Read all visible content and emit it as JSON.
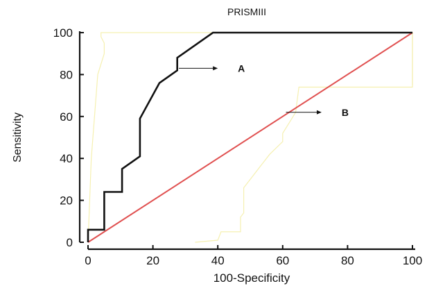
{
  "chart_data": {
    "type": "line",
    "title": "PRISMIII",
    "xlabel": "100-Specificity",
    "ylabel": "Sensitivity",
    "xlim": [
      0,
      100
    ],
    "ylim": [
      0,
      100
    ],
    "x_ticks": [
      "0",
      "20",
      "40",
      "60",
      "80",
      "100"
    ],
    "y_ticks": [
      "0",
      "20",
      "40",
      "60",
      "80",
      "100"
    ],
    "grid": false,
    "legend": "none",
    "series": [
      {
        "color": "#111111",
        "x": [
          0,
          0,
          5,
          5,
          10.5,
          10.5,
          16,
          16,
          22,
          27.5,
          27.5,
          38.5,
          100
        ],
        "y": [
          0,
          6,
          6,
          24,
          24,
          35,
          41,
          59,
          76,
          82,
          88,
          100,
          100
        ]
      },
      {
        "color": "#e05050",
        "x": [
          0,
          100
        ],
        "y": [
          0,
          100
        ]
      },
      {
        "color": "#f5f0b0",
        "x": [
          0,
          1,
          3,
          5,
          5,
          4,
          4,
          12,
          18,
          22,
          28,
          38,
          100,
          100,
          100
        ],
        "y": [
          0,
          40,
          80,
          90,
          95,
          98,
          100,
          100,
          100,
          100,
          100,
          100,
          100,
          90,
          75
        ]
      },
      {
        "color": "#f5f0b0",
        "x": [
          33,
          40,
          41,
          47,
          47,
          48,
          48,
          50,
          53,
          56,
          60,
          60,
          62,
          64,
          65,
          100,
          100
        ],
        "y": [
          0,
          1,
          5,
          5,
          12,
          14,
          26,
          30,
          36,
          42,
          48,
          52,
          57,
          62,
          74,
          74,
          100
        ]
      }
    ],
    "annotations": [
      {
        "text": "A",
        "arrow_from": [
          28,
          83
        ],
        "arrow_to": [
          40,
          83
        ]
      },
      {
        "text": "B",
        "arrow_from": [
          61,
          62
        ],
        "arrow_to": [
          72,
          62
        ]
      }
    ]
  }
}
